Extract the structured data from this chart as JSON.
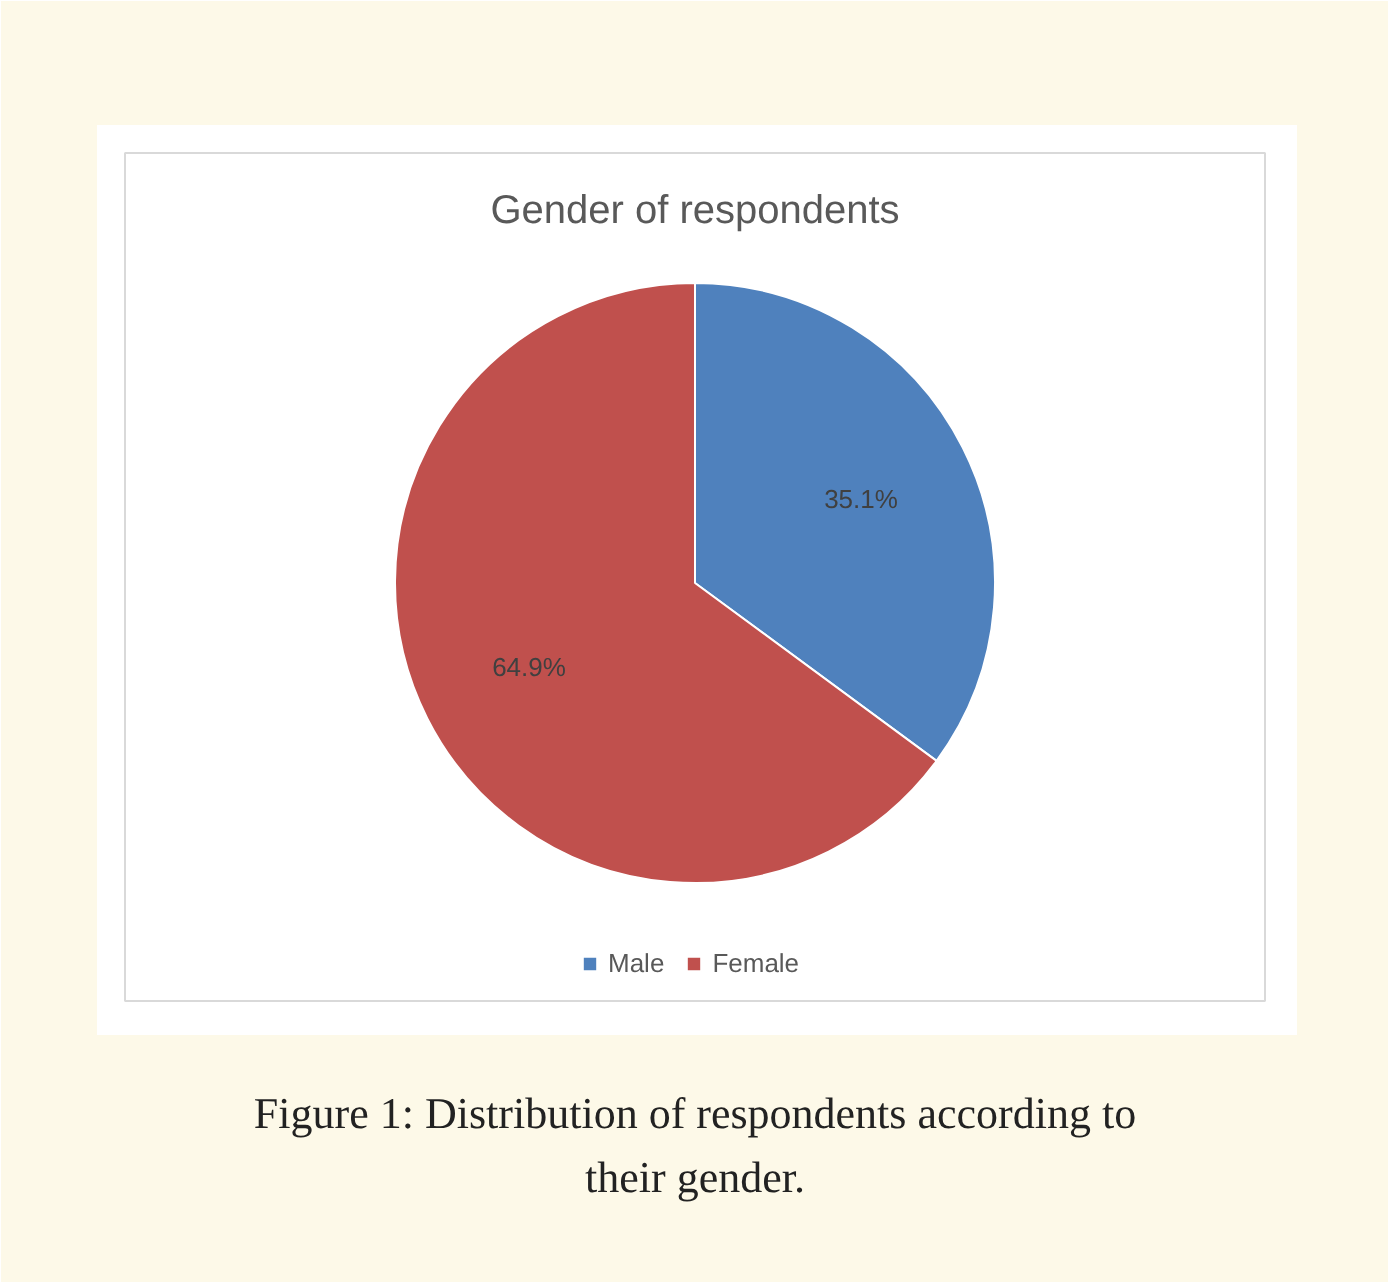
{
  "chart_data": {
    "type": "pie",
    "title": "Gender of respondents",
    "categories": [
      "Male",
      "Female"
    ],
    "values": [
      35.1,
      64.9
    ],
    "colors": [
      "#4f81bd",
      "#c0504d"
    ],
    "value_labels": [
      "35.1%",
      "64.9%"
    ],
    "legend": "bottom",
    "annotations": [
      "Figure 1: Distribution of respondents according to their gender."
    ]
  }
}
